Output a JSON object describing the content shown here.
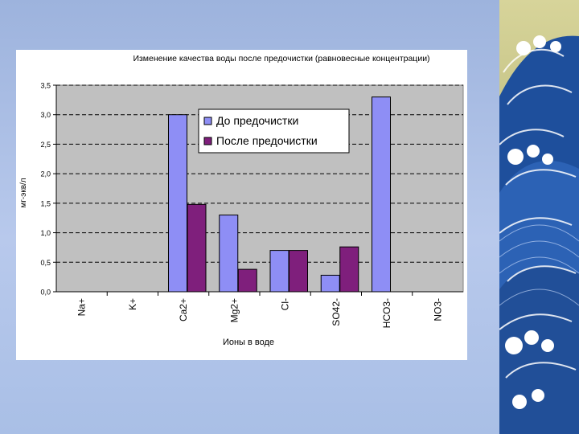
{
  "chart_data": {
    "type": "bar",
    "title": "Изменение качества воды после предочистки (равновесные концентрации)",
    "xlabel": "Ионы в воде",
    "ylabel": "мг-экв/л",
    "categories": [
      "Na+",
      "K+",
      "Ca2+",
      "Mg2+",
      "Cl-",
      "SO42-",
      "HCO3-",
      "NO3-"
    ],
    "series": [
      {
        "name": "До предочистки",
        "values": [
          0,
          0,
          3.0,
          1.3,
          0.7,
          0.28,
          3.3,
          0
        ],
        "color": "#8e8ef5"
      },
      {
        "name": "После предочистки",
        "values": [
          0,
          0,
          1.48,
          0.38,
          0.7,
          0.76,
          0,
          0
        ],
        "color": "#7f1f7c"
      }
    ],
    "ylim": [
      0,
      3.5
    ],
    "yticks": [
      "0,0",
      "0,5",
      "1,0",
      "1,5",
      "2,0",
      "2,5",
      "3,0",
      "3,5"
    ],
    "grid": true,
    "legend_position": "upper-middle"
  },
  "colors": {
    "background": "#a9bfe6",
    "wave_dark": "#1e4f9c",
    "wave_light": "#4f86d1",
    "wave_sky": "#a3a060",
    "plot_bg": "#c0c0c0"
  }
}
